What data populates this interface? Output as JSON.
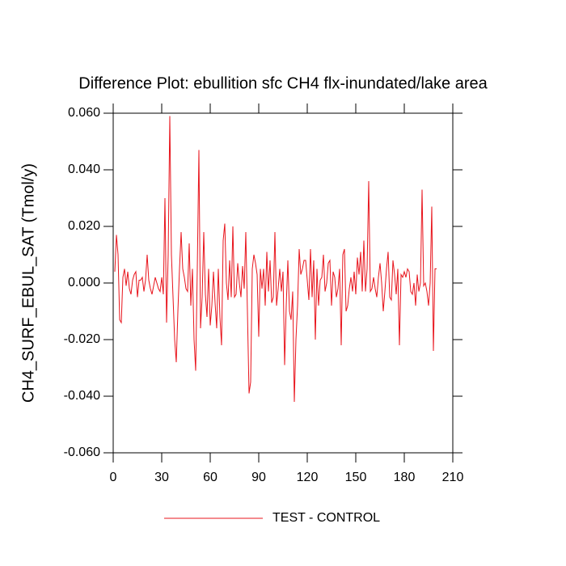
{
  "chart_data": {
    "type": "line",
    "title": "Difference Plot: ebullition sfc CH4 flx-inundated/lake area",
    "ylabel": "CH4_SURF_EBUL_SAT  (Tmol/y)",
    "xlim": [
      0,
      210
    ],
    "xticks": [
      0,
      30,
      60,
      90,
      120,
      150,
      180,
      210
    ],
    "ylim": [
      -0.06,
      0.06
    ],
    "yticks": [
      {
        "value": -0.06,
        "label": "-0.060"
      },
      {
        "value": -0.04,
        "label": "-0.040"
      },
      {
        "value": -0.02,
        "label": "-0.020"
      },
      {
        "value": 0,
        "label": "0.000"
      },
      {
        "value": 0.02,
        "label": "0.020"
      },
      {
        "value": 0.04,
        "label": "0.040"
      },
      {
        "value": 0.06,
        "label": "0.060"
      }
    ],
    "legend": "bottom",
    "x": [
      1,
      2,
      3,
      4,
      5,
      6,
      7,
      8,
      9,
      10,
      11,
      12,
      13,
      14,
      15,
      16,
      17,
      18,
      19,
      20,
      21,
      22,
      23,
      24,
      25,
      26,
      27,
      28,
      29,
      30,
      31,
      32,
      33,
      34,
      35,
      36,
      37,
      38,
      39,
      40,
      41,
      42,
      43,
      44,
      45,
      46,
      47,
      48,
      49,
      50,
      51,
      52,
      53,
      54,
      55,
      56,
      57,
      58,
      59,
      60,
      61,
      62,
      63,
      64,
      65,
      66,
      67,
      68,
      69,
      70,
      71,
      72,
      73,
      74,
      75,
      76,
      77,
      78,
      79,
      80,
      81,
      82,
      83,
      84,
      85,
      86,
      87,
      88,
      89,
      90,
      91,
      92,
      93,
      94,
      95,
      96,
      97,
      98,
      99,
      100,
      101,
      102,
      103,
      104,
      105,
      106,
      107,
      108,
      109,
      110,
      111,
      112,
      113,
      114,
      115,
      116,
      117,
      118,
      119,
      120,
      121,
      122,
      123,
      124,
      125,
      126,
      127,
      128,
      129,
      130,
      131,
      132,
      133,
      134,
      135,
      136,
      137,
      138,
      139,
      140,
      141,
      142,
      143,
      144,
      145,
      146,
      147,
      148,
      149,
      150,
      151,
      152,
      153,
      154,
      155,
      156,
      157,
      158,
      159,
      160,
      161,
      162,
      163,
      164,
      165,
      166,
      167,
      168,
      169,
      170,
      171,
      172,
      173,
      174,
      175,
      176,
      177,
      178,
      179,
      180,
      181,
      182,
      183,
      184,
      185,
      186,
      187,
      188,
      189,
      190,
      191,
      192,
      193,
      194,
      195,
      196,
      197,
      198,
      199,
      200
    ],
    "series": [
      {
        "name": "TEST - CONTROL",
        "color": "#e8141c",
        "values": [
          0.004,
          0.017,
          0.01,
          -0.013,
          -0.014,
          0.002,
          0.005,
          -0.001,
          0.004,
          -0.002,
          -0.004,
          0.001,
          0.003,
          0.004,
          -0.005,
          0.001,
          0.001,
          0.002,
          -0.003,
          0.001,
          0.01,
          0.001,
          -0.002,
          -0.004,
          -0.001,
          0.002,
          0.0,
          -0.002,
          -0.003,
          0.002,
          -0.004,
          0.03,
          -0.014,
          0.01,
          0.059,
          0.01,
          -0.005,
          -0.02,
          -0.028,
          -0.01,
          0.005,
          0.018,
          0.005,
          0.002,
          -0.002,
          -0.003,
          0.014,
          -0.008,
          0.005,
          -0.02,
          -0.031,
          0.005,
          0.047,
          -0.016,
          -0.005,
          0.018,
          -0.004,
          -0.012,
          0.005,
          -0.015,
          -0.008,
          0.004,
          -0.007,
          -0.016,
          0.005,
          -0.012,
          -0.022,
          0.015,
          0.021,
          0.0,
          -0.006,
          0.008,
          -0.005,
          0.02,
          -0.005,
          -0.004,
          0.007,
          0.0,
          -0.005,
          0.006,
          -0.002,
          0.018,
          -0.01,
          -0.039,
          -0.035,
          0.005,
          0.01,
          0.007,
          0.003,
          -0.019,
          0.005,
          -0.002,
          0.005,
          -0.008,
          0.011,
          -0.003,
          0.008,
          -0.007,
          -0.005,
          0.018,
          -0.008,
          -0.002,
          0.005,
          -0.003,
          0.004,
          -0.029,
          -0.008,
          0.008,
          -0.01,
          -0.013,
          -0.003,
          -0.042,
          -0.02,
          -0.008,
          0.012,
          0.003,
          0.005,
          0.008,
          0.008,
          0.001,
          -0.006,
          0.012,
          -0.005,
          0.008,
          -0.02,
          0.005,
          -0.008,
          0.001,
          0.002,
          0.01,
          -0.003,
          0.0,
          0.007,
          0.008,
          -0.008,
          0.004,
          0.002,
          -0.005,
          -0.002,
          0.005,
          -0.022,
          0.01,
          0.012,
          -0.01,
          -0.008,
          -0.002,
          0.002,
          -0.003,
          0.004,
          -0.004,
          0.009,
          0.003,
          0.011,
          -0.003,
          0.015,
          -0.003,
          0.005,
          0.036,
          -0.003,
          -0.002,
          0.002,
          -0.002,
          -0.005,
          0.002,
          0.007,
          0.0,
          -0.01,
          -0.003,
          0.005,
          0.011,
          -0.005,
          -0.006,
          0.008,
          0.003,
          -0.004,
          0.005,
          -0.022,
          0.003,
          0.002,
          0.004,
          0.002,
          0.005,
          0.004,
          -0.003,
          -0.004,
          0.0,
          -0.008,
          0.003,
          -0.003,
          0.0,
          0.033,
          -0.001,
          0.0,
          -0.003,
          -0.008,
          0.0,
          0.027,
          -0.024,
          0.005,
          0.005
        ]
      }
    ]
  }
}
